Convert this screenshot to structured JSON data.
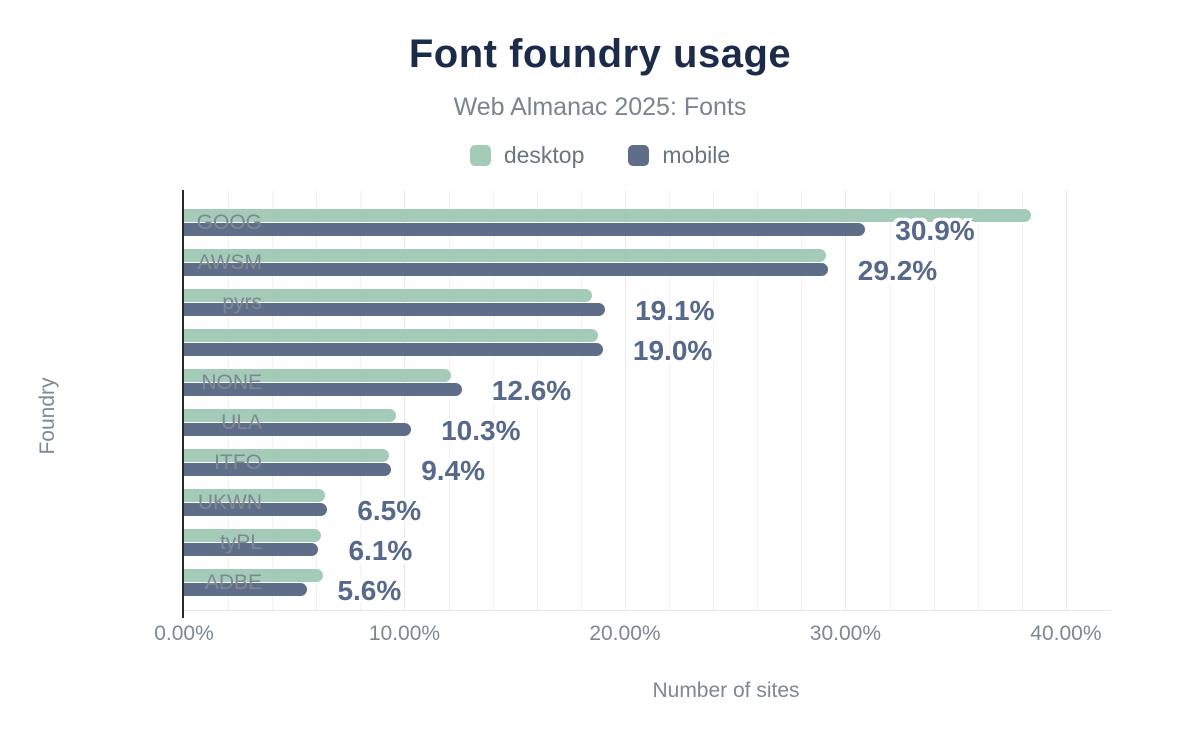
{
  "header": {
    "title": "Font foundry usage",
    "subtitle": "Web Almanac 2025: Fonts"
  },
  "legend": [
    {
      "label": "desktop",
      "color": "#a4cbb8"
    },
    {
      "label": "mobile",
      "color": "#5f6e88"
    }
  ],
  "chart_data": {
    "type": "bar",
    "orientation": "horizontal",
    "title": "Font foundry usage",
    "subtitle": "Web Almanac 2025: Fonts",
    "xlabel": "Number of sites",
    "ylabel": "Foundry",
    "xlim": [
      0,
      42
    ],
    "x_tick_step": 10,
    "x_ticks": [
      "0.00%",
      "10.00%",
      "20.00%",
      "30.00%",
      "40.00%"
    ],
    "x_tick_values": [
      0,
      10,
      20,
      30,
      40
    ],
    "grid_step": 2,
    "categories": [
      "GOOG",
      "AWSM",
      "pyrs",
      "",
      "NONE",
      "ULA",
      "ITFO",
      "UKWN",
      "tyPL",
      "ADBE"
    ],
    "series": [
      {
        "name": "desktop",
        "color": "#a4cbb8",
        "values": [
          38.4,
          29.1,
          18.5,
          18.8,
          12.1,
          9.6,
          9.3,
          6.4,
          6.2,
          6.3
        ]
      },
      {
        "name": "mobile",
        "color": "#5f6e88",
        "values": [
          30.9,
          29.2,
          19.1,
          19.0,
          12.6,
          10.3,
          9.4,
          6.5,
          6.1,
          5.6
        ]
      }
    ],
    "data_labels": [
      "30.9%",
      "29.2%",
      "19.1%",
      "19.0%",
      "12.6%",
      "10.3%",
      "9.4%",
      "6.5%",
      "6.1%",
      "5.6%"
    ],
    "data_label_series": "mobile"
  }
}
